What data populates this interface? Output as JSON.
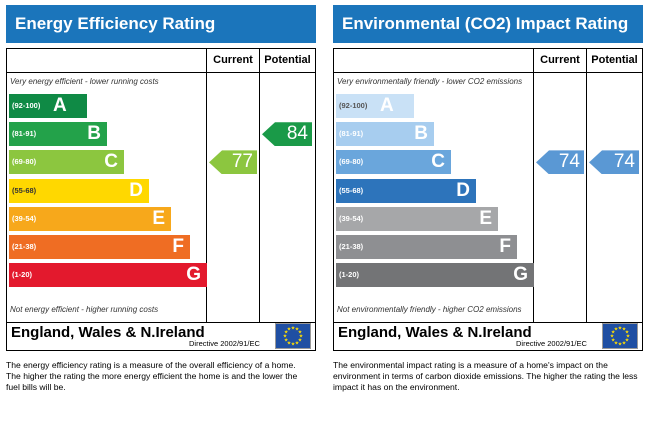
{
  "columns": {
    "current": "Current",
    "potential": "Potential"
  },
  "bands": [
    {
      "range": "(92-100)",
      "letter": "A"
    },
    {
      "range": "(81-91)",
      "letter": "B"
    },
    {
      "range": "(69-80)",
      "letter": "C"
    },
    {
      "range": "(55-68)",
      "letter": "D"
    },
    {
      "range": "(39-54)",
      "letter": "E"
    },
    {
      "range": "(21-38)",
      "letter": "F"
    },
    {
      "range": "(1-20)",
      "letter": "G"
    }
  ],
  "energy": {
    "title": "Energy Efficiency Rating",
    "top_note": "Very energy efficient - lower running costs",
    "bottom_note": "Not energy efficient - higher running costs",
    "current": 77,
    "potential": 84,
    "current_color": "#8cc63f",
    "potential_color": "#1a9a48",
    "band_colors": [
      "#0f8a45",
      "#23a24a",
      "#8cc63f",
      "#ffd800",
      "#f7a81b",
      "#ef6d23",
      "#e3192d"
    ],
    "description": "The energy efficiency rating is a measure of the overall efficiency of a home. The higher the rating the more energy efficient the home is and the lower the fuel bills will be."
  },
  "environmental": {
    "title": "Environmental (CO2) Impact Rating",
    "top_note": "Very environmentally friendly - lower CO2 emissions",
    "bottom_note": "Not environmentally friendly - higher CO2 emissions",
    "current": 74,
    "potential": 74,
    "current_color": "#5a98d4",
    "potential_color": "#5a98d4",
    "band_colors": [
      "#c9e1f6",
      "#a7cdef",
      "#6aa6dc",
      "#2d74bb",
      "#a6a7a9",
      "#8e8f92",
      "#737476"
    ],
    "description": "The environmental impact rating is a measure of a home's impact on the environment in terms of carbon dioxide emissions. The higher the rating the less impact it has on the environment."
  },
  "footer": {
    "region": "England, Wales & N.Ireland",
    "directive": "Directive 2002/91/EC",
    "flag_icon": "eu-flag-icon"
  }
}
